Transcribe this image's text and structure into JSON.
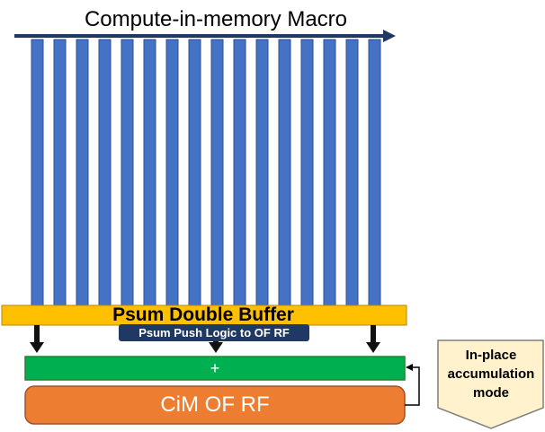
{
  "title": "Compute-in-memory Macro",
  "psum_buffer_label": "Psum Double Buffer",
  "push_logic_label": "Psum Push Logic to OF RF",
  "adder_label": "+",
  "rf_label": "CiM OF RF",
  "mode_label": "In-place\naccumulation\nmode",
  "column_count": 16,
  "colors": {
    "column": "#4472c4",
    "column_border": "#2f528f",
    "top_arrow": "#1f3864",
    "buffer": "#ffc000",
    "push_logic": "#1f3864",
    "adder": "#00b050",
    "rf": "#ed7d31",
    "callout_fill": "#fff2cc",
    "callout_border": "#7f7f7f"
  }
}
